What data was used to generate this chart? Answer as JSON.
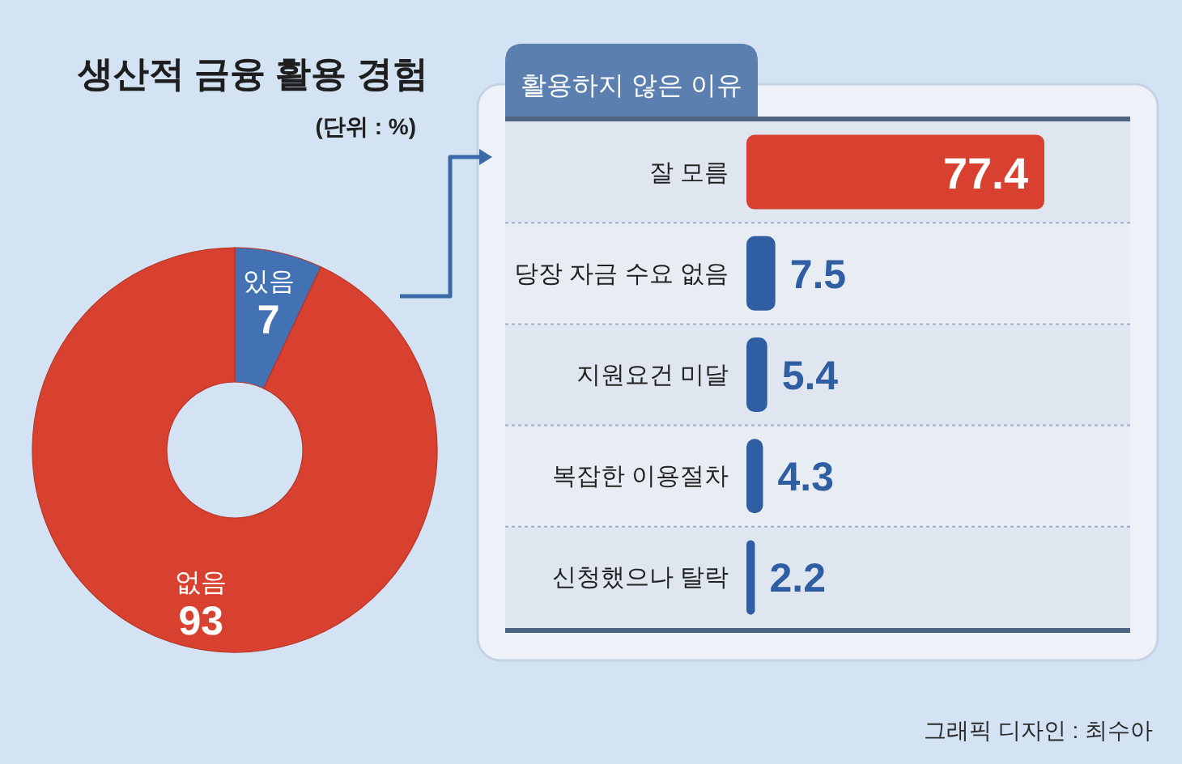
{
  "chart_data": [
    {
      "type": "donut",
      "title": "생산적 금융 활용 경험",
      "subtitle": "(단위 : %)",
      "categories": [
        "있음",
        "없음"
      ],
      "values": [
        7,
        93
      ],
      "colors": [
        "#4272b4",
        "#d8412f"
      ],
      "data_labels": true
    },
    {
      "type": "bar",
      "orientation": "horizontal",
      "title": "활용하지 않은 이유",
      "categories": [
        "잘 모름",
        "당장 자금 수요 없음",
        "지원요건 미달",
        "복잡한 이용절차",
        "신청했으나 탈락"
      ],
      "values": [
        77.4,
        7.5,
        5.4,
        4.3,
        2.2
      ],
      "colors": [
        "#d8412f",
        "#2f5ea3",
        "#2f5ea3",
        "#2f5ea3",
        "#2f5ea3"
      ],
      "data_labels": true,
      "annotations": [
        "그래픽 디자인 : 최수아"
      ]
    }
  ]
}
